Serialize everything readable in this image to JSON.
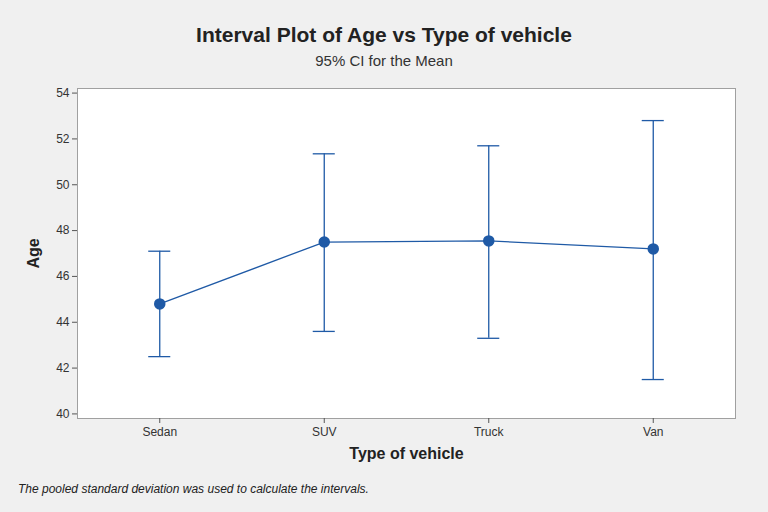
{
  "chart_data": {
    "type": "interval",
    "title": "Interval Plot of Age vs Type of vehicle",
    "subtitle": "95% CI for the Mean",
    "x_label": "Type of vehicle",
    "y_label": "Age",
    "annotations": [
      "The pooled standard deviation was used to calculate the intervals."
    ],
    "categories": [
      "Sedan",
      "SUV",
      "Truck",
      "Van"
    ],
    "values": [
      44.8,
      47.5,
      47.55,
      47.2
    ],
    "lower": [
      42.5,
      43.6,
      43.3,
      41.5
    ],
    "upper": [
      47.1,
      51.35,
      51.7,
      52.8
    ],
    "color": "#1f5aa6",
    "marker": "circle",
    "ylim": [
      39.8,
      54.2
    ],
    "yticks": [
      40,
      42,
      44,
      46,
      48,
      50,
      52,
      54
    ],
    "grid": false
  }
}
